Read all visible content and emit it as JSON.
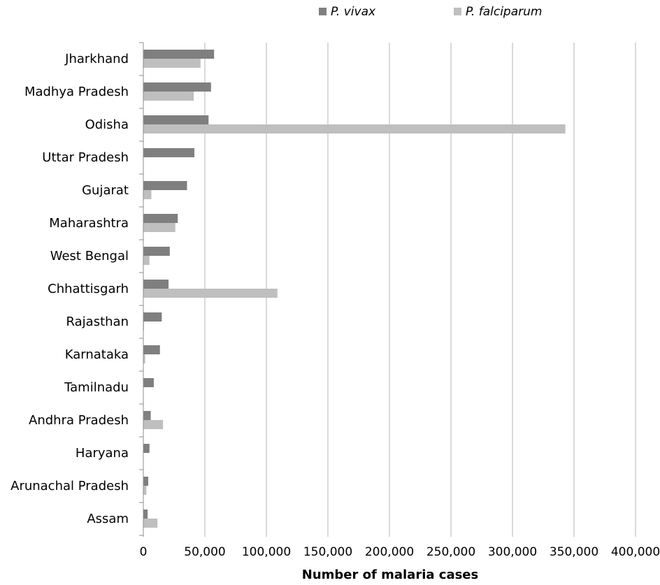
{
  "chart_data": {
    "type": "bar",
    "orientation": "horizontal",
    "xlabel": "Number of malaria cases",
    "xlim": [
      0,
      400000
    ],
    "x_ticks": [
      0,
      50000,
      100000,
      150000,
      200000,
      250000,
      300000,
      350000,
      400000
    ],
    "x_tick_labels": [
      "0",
      "50,000",
      "100,000",
      "150,000",
      "200,000",
      "250,000",
      "300,000",
      "350,000",
      "400,000"
    ],
    "grid": true,
    "legend_position": "top",
    "categories": [
      "Jharkhand",
      "Madhya Pradesh",
      "Odisha",
      "Uttar Pradesh",
      "Gujarat",
      "Maharashtra",
      "West Bengal",
      "Chhattisgarh",
      "Rajasthan",
      "Karnataka",
      "Tamilnadu",
      "Andhra Pradesh",
      "Haryana",
      "Arunachal Pradesh",
      "Assam"
    ],
    "series": [
      {
        "name": "P. vivax",
        "color": "#7f7f7f",
        "values": [
          57500,
          55000,
          53000,
          41500,
          35500,
          28000,
          21500,
          20500,
          15000,
          13500,
          8500,
          6000,
          5000,
          4000,
          3500
        ]
      },
      {
        "name": "P. falciparum",
        "color": "#bfbfbf",
        "values": [
          46500,
          41000,
          343000,
          0,
          6500,
          26000,
          5000,
          109000,
          500,
          1500,
          0,
          16000,
          0,
          2500,
          11500
        ]
      }
    ]
  }
}
